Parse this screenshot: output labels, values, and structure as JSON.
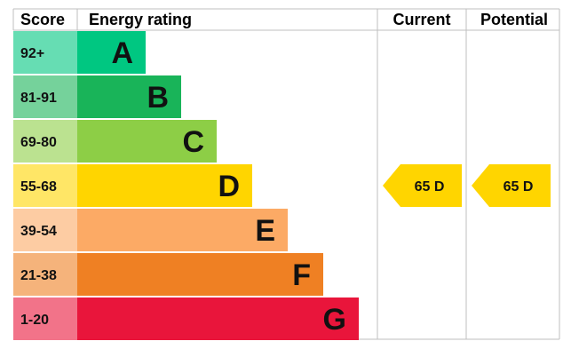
{
  "chart_data": {
    "type": "bar",
    "headers": {
      "score": "Score",
      "rating": "Energy rating",
      "current": "Current",
      "potential": "Potential"
    },
    "bands": [
      {
        "score": "92+",
        "letter": "A",
        "bar_color": "#00c781",
        "score_color": "#66ddb3"
      },
      {
        "score": "81-91",
        "letter": "B",
        "bar_color": "#19b459",
        "score_color": "#75d29b"
      },
      {
        "score": "69-80",
        "letter": "C",
        "bar_color": "#8dce46",
        "score_color": "#bbe290"
      },
      {
        "score": "55-68",
        "letter": "D",
        "bar_color": "#ffd500",
        "score_color": "#ffe666"
      },
      {
        "score": "39-54",
        "letter": "E",
        "bar_color": "#fcaa65",
        "score_color": "#fdcca3"
      },
      {
        "score": "21-38",
        "letter": "F",
        "bar_color": "#ef8023",
        "score_color": "#f5b37b"
      },
      {
        "score": "1-20",
        "letter": "G",
        "bar_color": "#e9153b",
        "score_color": "#f27389"
      }
    ],
    "current": {
      "value": 65,
      "letter": "D",
      "text": "65  D",
      "band": "D",
      "color": "#ffd500"
    },
    "potential": {
      "value": 65,
      "letter": "D",
      "text": "65  D",
      "band": "D",
      "color": "#ffd500"
    }
  }
}
